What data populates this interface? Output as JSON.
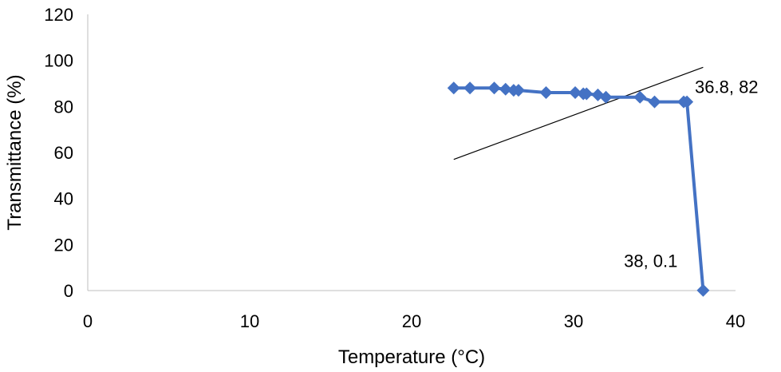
{
  "chart_data": {
    "type": "scatter",
    "title": "",
    "xlabel": "Temperature (°C)",
    "ylabel": "Transmittance (%)",
    "xlim": [
      0,
      40
    ],
    "ylim": [
      0,
      120
    ],
    "xticks": [
      "0",
      "10",
      "20",
      "30",
      "40"
    ],
    "yticks": [
      "0",
      "20",
      "40",
      "60",
      "80",
      "100",
      "120"
    ],
    "grid": false,
    "legend": "none",
    "series": [
      {
        "color": "#4472C4",
        "marker": "diamond",
        "line": true,
        "x": [
          22.6,
          23.6,
          25.1,
          25.8,
          26.3,
          26.6,
          28.3,
          30.1,
          30.6,
          30.8,
          31.5,
          32.0,
          34.1,
          35.0,
          36.8,
          37.0,
          38.0
        ],
        "y": [
          88,
          88,
          88,
          87.5,
          87,
          87,
          86,
          86,
          85.5,
          85.5,
          85,
          84,
          84,
          82,
          82,
          82,
          0.1
        ]
      }
    ],
    "trendline": {
      "color": "#000000",
      "x": [
        22.6,
        38.0
      ],
      "y": [
        57,
        97
      ]
    },
    "annotations": [
      {
        "text": "36.8, 82",
        "x": 36.8,
        "y": 82
      },
      {
        "text": "38, 0.1",
        "x": 38.0,
        "y": 0.1
      }
    ]
  }
}
